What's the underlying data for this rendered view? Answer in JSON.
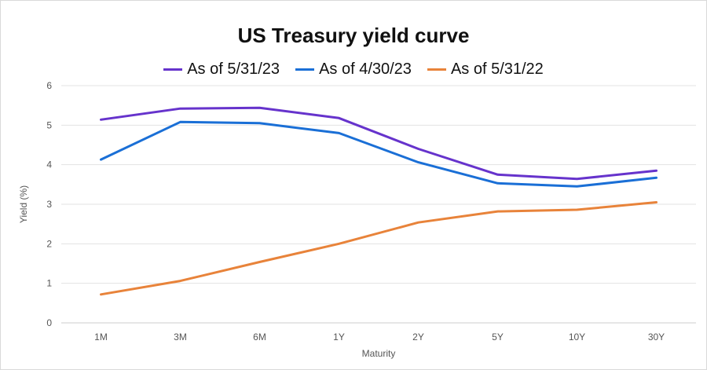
{
  "chart_data": {
    "type": "line",
    "title": "US Treasury yield curve",
    "xlabel": "Maturity",
    "ylabel": "Yield (%)",
    "ylim": [
      0,
      6
    ],
    "yticks": [
      "0",
      "1",
      "2",
      "3",
      "4",
      "5",
      "6"
    ],
    "categories": [
      "1M",
      "3M",
      "6M",
      "1Y",
      "2Y",
      "5Y",
      "10Y",
      "30Y"
    ],
    "grid": true,
    "legend_position": "top",
    "series": [
      {
        "name": "As of 5/31/23",
        "color": "#6633cc",
        "values": [
          5.14,
          5.42,
          5.44,
          5.18,
          4.4,
          3.75,
          3.64,
          3.85
        ]
      },
      {
        "name": "As of 4/30/23",
        "color": "#1a6fd6",
        "values": [
          4.13,
          5.08,
          5.05,
          4.8,
          4.06,
          3.53,
          3.45,
          3.67
        ]
      },
      {
        "name": "As of 5/31/22",
        "color": "#e8833a",
        "values": [
          0.72,
          1.06,
          1.54,
          2.0,
          2.54,
          2.82,
          2.86,
          3.05
        ]
      }
    ]
  }
}
